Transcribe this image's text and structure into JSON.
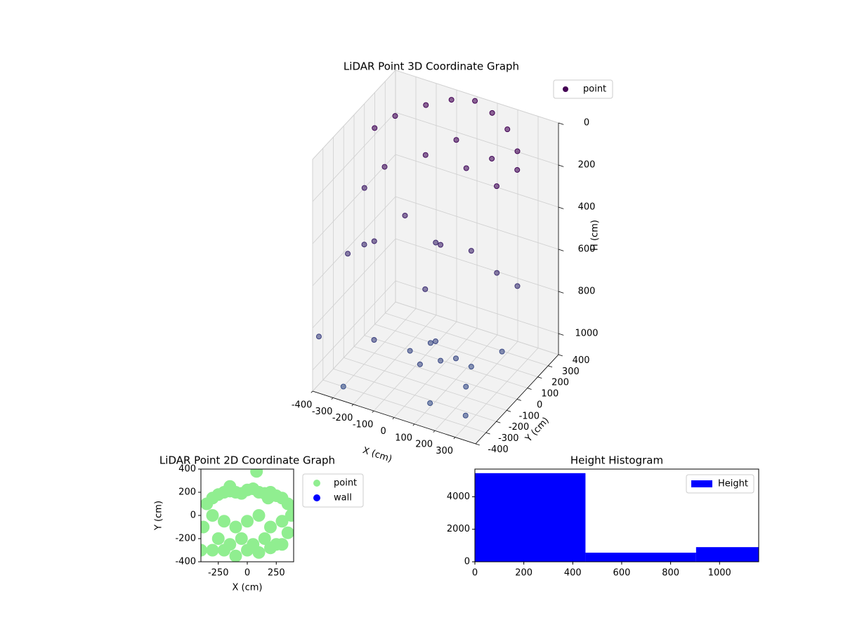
{
  "chart_data": [
    {
      "type": "scatter3d",
      "title": "LiDAR Point 3D Coordinate Graph",
      "xlabel": "X (cm)",
      "ylabel": "Y (cm)",
      "zlabel": "H (cm)",
      "series": [
        {
          "name": "point",
          "x": [
            -200,
            -100,
            0,
            100,
            200,
            300,
            350,
            300,
            -300,
            -350,
            -250,
            0,
            100,
            -100,
            200,
            -150,
            50,
            150,
            -50,
            250,
            -250,
            0,
            300,
            -350,
            0,
            50,
            -50,
            100,
            150,
            -100,
            0,
            200,
            -200,
            100,
            -300,
            300,
            250,
            -400,
            -380,
            -420
          ],
          "y": [
            300,
            350,
            380,
            350,
            300,
            200,
            100,
            0,
            200,
            100,
            0,
            200,
            100,
            100,
            150,
            0,
            -50,
            50,
            100,
            100,
            -100,
            -100,
            200,
            0,
            0,
            -50,
            50,
            0,
            50,
            -50,
            -150,
            -100,
            -200,
            -250,
            -300,
            -300,
            150,
            100,
            -100,
            -300
          ],
          "z": [
            50,
            20,
            10,
            20,
            40,
            60,
            80,
            120,
            80,
            100,
            200,
            100,
            150,
            150,
            100,
            400,
            450,
            500,
            550,
            600,
            500,
            650,
            700,
            600,
            950,
            1000,
            1000,
            1000,
            1050,
            1000,
            980,
            1050,
            900,
            1080,
            1100,
            1050,
            1000,
            400,
            600,
            900
          ]
        }
      ],
      "colormap": [
        "#440154",
        "#3b528b"
      ],
      "xlim": [
        -400,
        400
      ],
      "ylim": [
        -400,
        400
      ],
      "zlim": [
        0,
        1100
      ],
      "zinverted": true,
      "xticks": [
        -400,
        -300,
        -200,
        -100,
        0,
        100,
        200,
        300
      ],
      "yticks": [
        -400,
        -300,
        -200,
        -100,
        0,
        100,
        200,
        300,
        400
      ],
      "zticks": [
        0,
        200,
        400,
        600,
        800,
        1000
      ],
      "grid": true,
      "legend": "upper right"
    },
    {
      "type": "scatter",
      "title": "LiDAR Point 2D Coordinate Graph",
      "xlabel": "X (cm)",
      "ylabel": "Y (cm)",
      "series": [
        {
          "name": "point",
          "color": "#90ee90",
          "x": [
            -300,
            -250,
            -200,
            -150,
            -100,
            -50,
            0,
            50,
            100,
            150,
            200,
            250,
            300,
            350,
            -350,
            -300,
            -200,
            -100,
            0,
            100,
            200,
            300,
            380,
            -380,
            -250,
            -150,
            -50,
            50,
            150,
            250,
            350,
            -100,
            100,
            0,
            -200,
            200,
            -300,
            300,
            80,
            -150,
            180,
            400,
            -400
          ],
          "y": [
            150,
            180,
            200,
            210,
            200,
            190,
            220,
            230,
            200,
            190,
            200,
            170,
            150,
            100,
            100,
            0,
            -50,
            -100,
            -50,
            0,
            -100,
            -50,
            0,
            -100,
            -200,
            -250,
            -200,
            -250,
            -200,
            -250,
            -150,
            -350,
            -320,
            -300,
            -300,
            -280,
            -300,
            -250,
            380,
            250,
            150,
            50,
            -300
          ]
        },
        {
          "name": "wall",
          "color": "#0000ff",
          "x": [],
          "y": []
        }
      ],
      "xlim": [
        -400,
        400
      ],
      "ylim": [
        -400,
        400
      ],
      "xticks": [
        -250,
        0,
        250
      ],
      "yticks": [
        -400,
        -200,
        0,
        200,
        400
      ],
      "legend": "outside right"
    },
    {
      "type": "histogram",
      "title": "Height Histogram",
      "series": [
        {
          "name": "Height",
          "color": "#0000ff",
          "bins": [
            0,
            452,
            904,
            1160
          ],
          "values": [
            5450,
            560,
            900
          ]
        }
      ],
      "xlim": [
        0,
        1160
      ],
      "ylim": [
        0,
        5700
      ],
      "xticks": [
        0,
        200,
        400,
        600,
        800,
        1000
      ],
      "yticks": [
        0,
        2000,
        4000
      ],
      "legend": "upper right"
    }
  ]
}
